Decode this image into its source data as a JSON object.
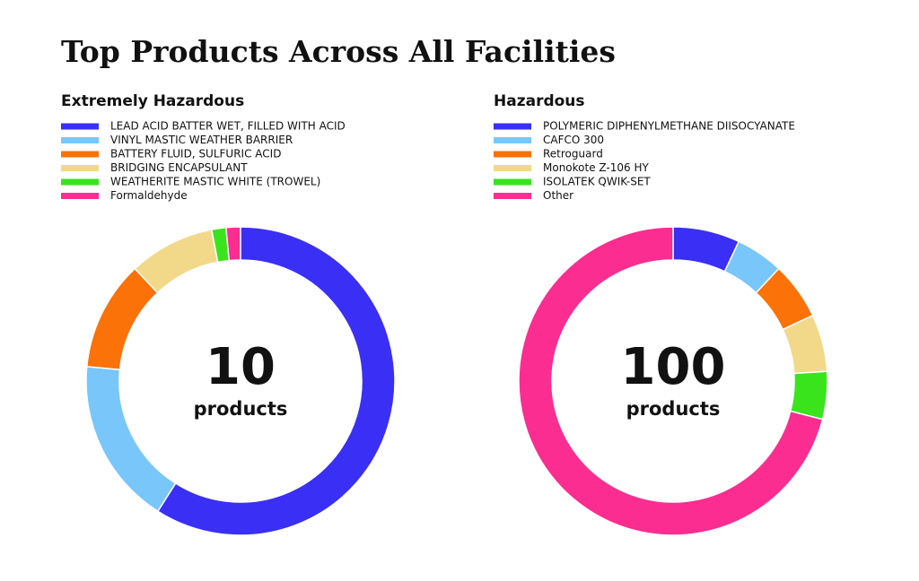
{
  "title": "Top Products Across All Facilities",
  "chart_data": [
    {
      "type": "donut",
      "title": "Extremely Hazardous",
      "categories": [
        "LEAD ACID BATTER WET, FILLED WITH ACID",
        "VINYL MASTIC WEATHER BARRIER",
        "BATTERY FLUID, SULFURIC ACID",
        "BRIDGING ENCAPSULANT",
        "WEATHERITE MASTIC WHITE (TROWEL)",
        "Formaldehyde"
      ],
      "values": [
        59,
        17.5,
        11.5,
        9,
        1.5,
        1.5
      ],
      "colors": [
        "#3a2ff5",
        "#79c6fa",
        "#fb7209",
        "#f2d98a",
        "#39e41d",
        "#fb2d91"
      ],
      "center_value": "10",
      "center_label": "products"
    },
    {
      "type": "donut",
      "title": "Hazardous",
      "categories": [
        "POLYMERIC DIPHENYLMETHANE DIISOCYANATE",
        "CAFCO 300",
        "Retroguard",
        "Monokote Z-106 HY",
        "ISOLATEK QWIK-SET",
        "Other"
      ],
      "values": [
        7,
        5,
        6,
        6,
        5,
        71
      ],
      "colors": [
        "#3a2ff5",
        "#79c6fa",
        "#fb7209",
        "#f2d98a",
        "#39e41d",
        "#fb2d91"
      ],
      "center_value": "100",
      "center_label": "products"
    }
  ]
}
